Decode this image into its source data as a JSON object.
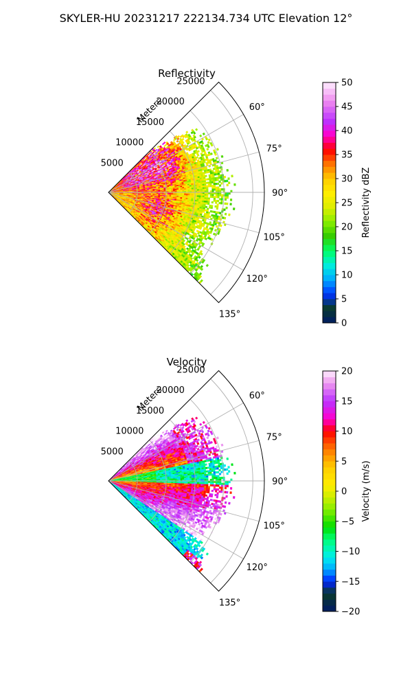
{
  "figure": {
    "title": "SKYLER-HU  20231217  222134.734 UTC Elevation 12°"
  },
  "chart_data": [
    {
      "type": "heatmap",
      "subtype": "polar-sector (radar PPI)",
      "title": "Reflectivity",
      "radial_axis_label": "Meters",
      "radial_ticks": [
        5000,
        10000,
        15000,
        20000,
        25000
      ],
      "radial_tick_labels": [
        "5000",
        "10000",
        "15000",
        "20000",
        "25000"
      ],
      "radial_range": [
        0,
        27000
      ],
      "angle_ticks_deg": [
        60,
        75,
        90,
        105,
        120,
        135
      ],
      "angle_tick_labels": [
        "60°",
        "75°",
        "90°",
        "105°",
        "120°",
        "135°"
      ],
      "sector_deg": [
        45,
        135
      ],
      "grid": true,
      "colorbar": {
        "label": "Reflectivity dBZ",
        "range": [
          0,
          50
        ],
        "ticks": [
          0,
          5,
          10,
          15,
          20,
          25,
          30,
          35,
          40,
          45,
          50
        ],
        "tick_labels": [
          "0",
          "5",
          "10",
          "15",
          "20",
          "25",
          "30",
          "35",
          "40",
          "45",
          "50"
        ],
        "stops": [
          {
            "v": 0,
            "c": "#001a66"
          },
          {
            "v": 3,
            "c": "#0a3a2a"
          },
          {
            "v": 6,
            "c": "#0033ff"
          },
          {
            "v": 9,
            "c": "#00aaff"
          },
          {
            "v": 12,
            "c": "#00eedd"
          },
          {
            "v": 15,
            "c": "#00ff66"
          },
          {
            "v": 18,
            "c": "#33cc00"
          },
          {
            "v": 21,
            "c": "#88ee00"
          },
          {
            "v": 24,
            "c": "#ddee00"
          },
          {
            "v": 27,
            "c": "#ffee00"
          },
          {
            "v": 30,
            "c": "#ffcc00"
          },
          {
            "v": 33,
            "c": "#ff7700"
          },
          {
            "v": 36,
            "c": "#ff0000"
          },
          {
            "v": 39,
            "c": "#ff00cc"
          },
          {
            "v": 42,
            "c": "#bb33ff"
          },
          {
            "v": 46,
            "c": "#ee88ee"
          },
          {
            "v": 50,
            "c": "#ffeeff"
          }
        ]
      },
      "field_features": {
        "echo_range_m": [
          0,
          22000
        ],
        "dominant_values_dbz": [
          20,
          25,
          30
        ],
        "cores_dbz": 35,
        "core_locations": [
          {
            "angle_deg": 62,
            "range_m": 11000
          },
          {
            "angle_deg": 108,
            "range_m": 9000
          },
          {
            "angle_deg": 55,
            "range_m": 6000
          }
        ]
      }
    },
    {
      "type": "heatmap",
      "subtype": "polar-sector (radar PPI)",
      "title": "Velocity",
      "radial_axis_label": "Meters",
      "radial_ticks": [
        5000,
        10000,
        15000,
        20000,
        25000
      ],
      "radial_tick_labels": [
        "5000",
        "10000",
        "15000",
        "20000",
        "25000"
      ],
      "radial_range": [
        0,
        27000
      ],
      "angle_ticks_deg": [
        60,
        75,
        90,
        105,
        120,
        135
      ],
      "angle_tick_labels": [
        "60°",
        "75°",
        "90°",
        "105°",
        "120°",
        "135°"
      ],
      "sector_deg": [
        45,
        135
      ],
      "grid": true,
      "colorbar": {
        "label": "Velocity (m/s)",
        "range": [
          -20,
          20
        ],
        "ticks": [
          -20,
          -15,
          -10,
          -5,
          0,
          5,
          10,
          15,
          20
        ],
        "tick_labels": [
          "−20",
          "−15",
          "−10",
          "−5",
          "0",
          "5",
          "10",
          "15",
          "20"
        ],
        "stops": [
          {
            "v": -20,
            "c": "#001a66"
          },
          {
            "v": -17,
            "c": "#0a3a2a"
          },
          {
            "v": -15,
            "c": "#0022ff"
          },
          {
            "v": -13,
            "c": "#00aaff"
          },
          {
            "v": -11,
            "c": "#00eeee"
          },
          {
            "v": -8,
            "c": "#00ff77"
          },
          {
            "v": -6,
            "c": "#00dd00"
          },
          {
            "v": -3,
            "c": "#88ee00"
          },
          {
            "v": -1,
            "c": "#ccee00"
          },
          {
            "v": 1,
            "c": "#ffee00"
          },
          {
            "v": 4,
            "c": "#ffcc00"
          },
          {
            "v": 7,
            "c": "#ff7700"
          },
          {
            "v": 10,
            "c": "#ff0000"
          },
          {
            "v": 12,
            "c": "#ff00cc"
          },
          {
            "v": 15,
            "c": "#bb33ff"
          },
          {
            "v": 18,
            "c": "#ee99ee"
          },
          {
            "v": 20,
            "c": "#ffeeff"
          }
        ]
      },
      "field_features": {
        "echo_range_m": [
          0,
          22000
        ],
        "inbound_m_s": -10,
        "outbound_m_s": 14,
        "zero_line_angle_deg": 80
      }
    }
  ]
}
